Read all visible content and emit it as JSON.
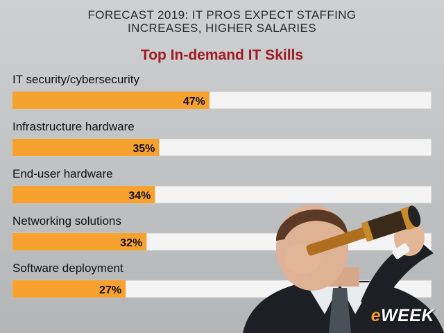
{
  "header": {
    "line1": "FORECAST 2019: IT PROS EXPECT STAFFING",
    "line2": "INCREASES, HIGHER SALARIES"
  },
  "colors": {
    "bar_fill": "#f7a12f",
    "track_fill": "#f4f4f4",
    "title": "#a01a22"
  },
  "chart_data": {
    "type": "bar",
    "orientation": "horizontal",
    "title": "Top In-demand IT Skills",
    "categories": [
      "IT security/cybersecurity",
      "Infrastructure hardware",
      "End-user hardware",
      "Networking solutions",
      "Software deployment"
    ],
    "values": [
      47,
      35,
      34,
      32,
      27
    ],
    "value_labels": [
      "47%",
      "35%",
      "34%",
      "32%",
      "27%"
    ],
    "xlim": [
      0,
      100
    ],
    "grid": false,
    "legend": "none"
  },
  "logo": {
    "prefix": "e",
    "rest": "WEEK"
  }
}
